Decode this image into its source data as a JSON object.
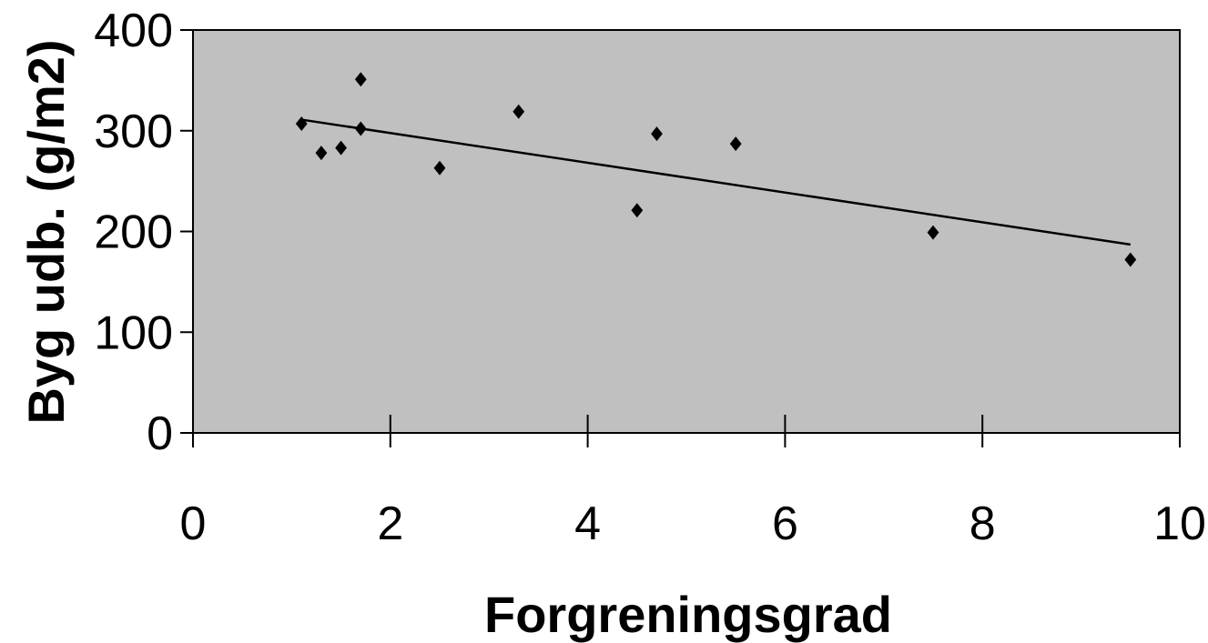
{
  "chart_data": {
    "type": "scatter",
    "title": "",
    "xlabel": "Forgreningsgrad",
    "ylabel": "Byg udb. (g/m2)",
    "xlim": [
      0,
      10
    ],
    "ylim": [
      0,
      400
    ],
    "xticks": [
      0,
      2,
      4,
      6,
      8,
      10
    ],
    "yticks": [
      0,
      100,
      200,
      300,
      400
    ],
    "grid": false,
    "legend": "none",
    "plot_background": "#c0c0c0",
    "marker": "diamond",
    "marker_color": "#000000",
    "series": [
      {
        "points": [
          {
            "x": 1.1,
            "y": 307
          },
          {
            "x": 1.3,
            "y": 278
          },
          {
            "x": 1.5,
            "y": 283
          },
          {
            "x": 1.7,
            "y": 351
          },
          {
            "x": 1.7,
            "y": 302
          },
          {
            "x": 2.5,
            "y": 263
          },
          {
            "x": 3.3,
            "y": 319
          },
          {
            "x": 4.5,
            "y": 221
          },
          {
            "x": 4.7,
            "y": 297
          },
          {
            "x": 5.5,
            "y": 287
          },
          {
            "x": 7.5,
            "y": 199
          },
          {
            "x": 9.5,
            "y": 172
          }
        ]
      }
    ],
    "trendline": {
      "type": "linear",
      "x": [
        1.1,
        9.5
      ],
      "y": [
        311,
        187
      ]
    }
  }
}
